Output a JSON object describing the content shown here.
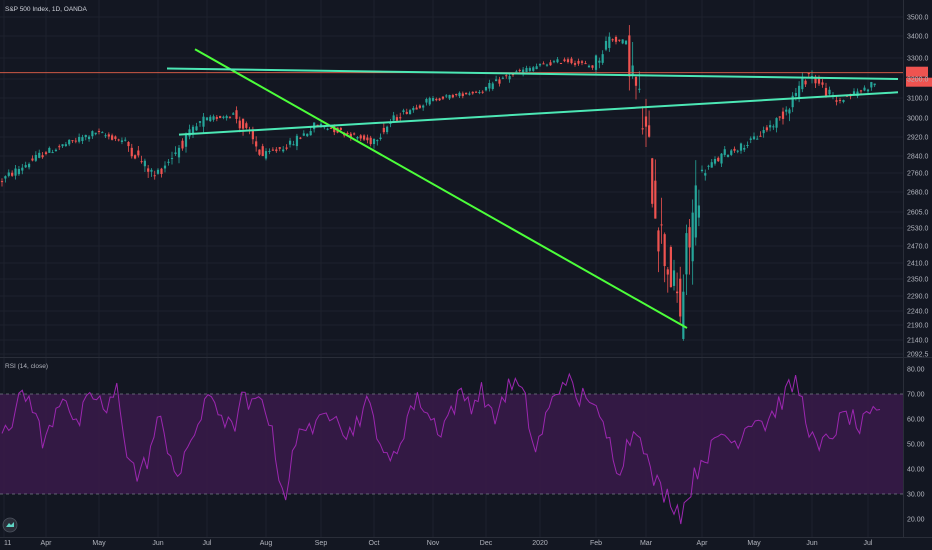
{
  "header": {
    "title": "S&P 500 Index, 1D, OANDA"
  },
  "rsi_panel": {
    "label": "RSI (14, close)"
  },
  "colors": {
    "background": "#131722",
    "up_candle": "#26a69a",
    "down_candle": "#ef5350",
    "trendline_green": "#4cff3a",
    "triangle_lines": "#4ce8b5",
    "resistance_line": "#e8624a",
    "rsi_line": "#9c27b0",
    "rsi_band_fill": "#3a1a4a",
    "price_tag": "#ef5350"
  },
  "chart_data": [
    {
      "type": "candlestick",
      "title": "S&P 500 Index, 1D, OANDA",
      "yaxis_position": "right",
      "ylim": [
        2092.5,
        3550
      ],
      "y_ticks": [
        "3500.0",
        "3400.0",
        "3300.0",
        "3200.0",
        "3100.0",
        "3000.0",
        "2920.0",
        "2840.0",
        "2760.0",
        "2680.0",
        "2605.0",
        "2530.0",
        "2470.0",
        "2410.0",
        "2350.0",
        "2290.0",
        "2240.0",
        "2190.0",
        "2140.0",
        "2092.5"
      ],
      "x_ticks": [
        "11",
        "Apr",
        "May",
        "Jun",
        "Jul",
        "Aug",
        "Sep",
        "Oct",
        "Nov",
        "Dec",
        "2020",
        "Feb",
        "Mar",
        "Apr",
        "May",
        "Jun",
        "Jul"
      ],
      "price_path": [
        [
          "11",
          2720
        ],
        [
          "Apr",
          2850
        ],
        [
          "May",
          2940
        ],
        [
          "May",
          2900
        ],
        [
          "Jun",
          2745
        ],
        [
          "Jun",
          2880
        ],
        [
          "Jul",
          2990
        ],
        [
          "Jul",
          3020
        ],
        [
          "Aug",
          2840
        ],
        [
          "Aug",
          2890
        ],
        [
          "Sep",
          2975
        ],
        [
          "Oct",
          2900
        ],
        [
          "Oct",
          3020
        ],
        [
          "Nov",
          3090
        ],
        [
          "Dec",
          3140
        ],
        [
          "Dec",
          3220
        ],
        [
          "2020",
          3260
        ],
        [
          "2020",
          3290
        ],
        [
          "Feb",
          3260
        ],
        [
          "Feb",
          3390
        ],
        [
          "Feb",
          3370
        ],
        [
          "Mar",
          2990
        ],
        [
          "Mar",
          2480
        ],
        [
          "Mar",
          2237
        ],
        [
          "Apr",
          2750
        ],
        [
          "Apr",
          2850
        ],
        [
          "May",
          2900
        ],
        [
          "May",
          3000
        ],
        [
          "Jun",
          3230
        ],
        [
          "Jun",
          3080
        ],
        [
          "Jul",
          3150
        ],
        [
          "Jul",
          3180
        ]
      ],
      "annotations": {
        "resistance_level": 3230,
        "rising_trendline": [
          [
            "Mar",
            2180
          ],
          [
            "Jun",
            3340
          ]
        ],
        "triangle_upper": [
          [
            "Jun",
            3250
          ],
          [
            "Jul",
            3200
          ]
        ],
        "triangle_lower": [
          [
            "Jun",
            2930
          ],
          [
            "Jul",
            3130
          ]
        ]
      }
    },
    {
      "type": "line",
      "title": "RSI (14, close)",
      "ylim": [
        15,
        85
      ],
      "y_ticks": [
        "80.00",
        "70.00",
        "60.00",
        "50.00",
        "40.00",
        "30.00",
        "20.00"
      ],
      "band": [
        30,
        70
      ],
      "series": [
        {
          "values": [
            58,
            60,
            70,
            66,
            48,
            63,
            72,
            55,
            65,
            70,
            62,
            72,
            47,
            36,
            45,
            60,
            48,
            35,
            52,
            60,
            70,
            62,
            55,
            68,
            64,
            70,
            50,
            28,
            48,
            60,
            55,
            62,
            65,
            52,
            60,
            66,
            55,
            40,
            50,
            64,
            68,
            60,
            56,
            64,
            70,
            66,
            72,
            58,
            70,
            75,
            68,
            46,
            60,
            70,
            78,
            66,
            72,
            60,
            52,
            40,
            52,
            58,
            38,
            32,
            28,
            22,
            34,
            45,
            48,
            55,
            50,
            56,
            62,
            58,
            64,
            70,
            75,
            60,
            46,
            52,
            58,
            62,
            56,
            60,
            62
          ]
        }
      ]
    }
  ]
}
